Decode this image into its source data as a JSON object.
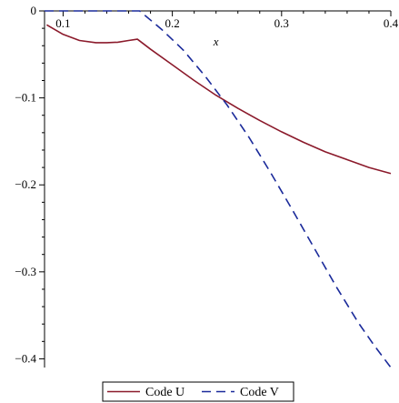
{
  "chart_data": {
    "type": "line",
    "xlabel": "x",
    "ylabel": "",
    "xlim": [
      0.083,
      0.4
    ],
    "ylim": [
      -0.41,
      0
    ],
    "x_ticks": [
      0.1,
      0.2,
      0.3,
      0.4
    ],
    "x_tick_labels": [
      "0.1",
      "0.2",
      "0.3",
      "0.4"
    ],
    "y_ticks": [
      0,
      -0.1,
      -0.2,
      -0.3,
      -0.4
    ],
    "y_tick_labels": [
      "0",
      "−0.1",
      "−0.2",
      "−0.3",
      "−0.4"
    ],
    "grid": false,
    "legend_position": "bottom",
    "series": [
      {
        "name": "Code U",
        "color": "#8b1a2b",
        "dash": "solid",
        "points": [
          [
            0.085,
            -0.016
          ],
          [
            0.1,
            -0.027
          ],
          [
            0.115,
            -0.034
          ],
          [
            0.13,
            -0.0365
          ],
          [
            0.14,
            -0.0365
          ],
          [
            0.15,
            -0.036
          ],
          [
            0.16,
            -0.034
          ],
          [
            0.168,
            -0.0325
          ],
          [
            0.18,
            -0.044
          ],
          [
            0.2,
            -0.062
          ],
          [
            0.22,
            -0.08
          ],
          [
            0.24,
            -0.097
          ],
          [
            0.26,
            -0.112
          ],
          [
            0.28,
            -0.126
          ],
          [
            0.3,
            -0.139
          ],
          [
            0.32,
            -0.151
          ],
          [
            0.34,
            -0.162
          ],
          [
            0.36,
            -0.171
          ],
          [
            0.38,
            -0.18
          ],
          [
            0.4,
            -0.187
          ]
        ]
      },
      {
        "name": "Code V",
        "color": "#1a2a9a",
        "dash": "dashed",
        "points": [
          [
            0.083,
            0
          ],
          [
            0.17,
            0
          ],
          [
            0.19,
            -0.021
          ],
          [
            0.21,
            -0.045
          ],
          [
            0.23,
            -0.075
          ],
          [
            0.25,
            -0.108
          ],
          [
            0.27,
            -0.145
          ],
          [
            0.29,
            -0.186
          ],
          [
            0.31,
            -0.229
          ],
          [
            0.33,
            -0.273
          ],
          [
            0.35,
            -0.317
          ],
          [
            0.37,
            -0.358
          ],
          [
            0.385,
            -0.385
          ],
          [
            0.4,
            -0.41
          ]
        ]
      }
    ]
  }
}
